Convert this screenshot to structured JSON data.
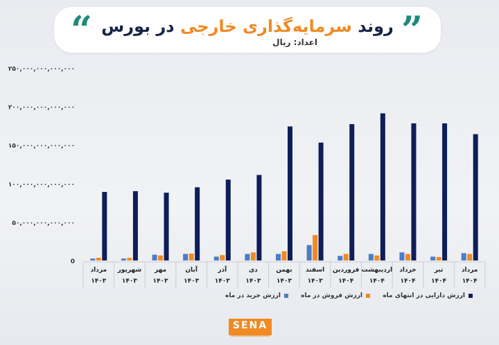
{
  "colors": {
    "buy": "#4d7cc8",
    "sell": "#f08a24",
    "assets": "#0f1e5a",
    "accent": "#f08a24",
    "teal": "#1f8a7a"
  },
  "header": {
    "title_part1": "روند ",
    "title_accent": "سرمایه‌گذاری خارجی",
    "title_part2": " در بورس",
    "unit_label": "اعداد: ریال",
    "quote_left": "“",
    "quote_right": "”"
  },
  "logo": {
    "text": "SENA"
  },
  "chart_data": {
    "type": "bar",
    "ylim": [
      0,
      250000000000000
    ],
    "y_ticks": [
      0,
      50000000000000,
      100000000000000,
      150000000000000,
      200000000000000,
      250000000000000
    ],
    "y_tick_labels": [
      "0",
      "۵۰,۰۰۰,۰۰۰,۰۰۰,۰۰۰",
      "۱۰۰,۰۰۰,۰۰۰,۰۰۰,۰۰۰",
      "۱۵۰,۰۰۰,۰۰۰,۰۰۰,۰۰۰",
      "۲۰۰,۰۰۰,۰۰۰,۰۰۰,۰۰۰",
      "۲۵۰,۰۰۰,۰۰۰,۰۰۰,۰۰۰"
    ],
    "categories": [
      {
        "month": "مرداد",
        "year": "۱۴۰۳"
      },
      {
        "month": "شهریور",
        "year": "۱۴۰۳"
      },
      {
        "month": "مهر",
        "year": "۱۴۰۳"
      },
      {
        "month": "آبان",
        "year": "۱۴۰۳"
      },
      {
        "month": "آذر",
        "year": "۱۴۰۳"
      },
      {
        "month": "دی",
        "year": "۱۴۰۳"
      },
      {
        "month": "بهمن",
        "year": "۱۴۰۳"
      },
      {
        "month": "اسفند",
        "year": "۱۴۰۳"
      },
      {
        "month": "فروردین",
        "year": "۱۴۰۴"
      },
      {
        "month": "اردیبهشت",
        "year": "۱۴۰۴"
      },
      {
        "month": "خرداد",
        "year": "۱۴۰۴"
      },
      {
        "month": "تیر",
        "year": "۱۴۰۴"
      },
      {
        "month": "مرداد",
        "year": "۱۴۰۴"
      }
    ],
    "series": [
      {
        "name": "ارزش خرید در ماه",
        "color_key": "buy",
        "values": [
          2500000000000,
          2500000000000,
          7500000000000,
          8500000000000,
          5000000000000,
          8500000000000,
          8500000000000,
          20000000000000,
          6000000000000,
          8500000000000,
          10500000000000,
          5000000000000,
          9500000000000
        ]
      },
      {
        "name": "ارزش فروش در ماه",
        "color_key": "sell",
        "values": [
          3500000000000,
          3500000000000,
          6500000000000,
          9000000000000,
          7000000000000,
          10500000000000,
          12000000000000,
          33000000000000,
          8500000000000,
          6500000000000,
          8500000000000,
          4500000000000,
          8500000000000
        ]
      },
      {
        "name": "ارزش دارایی در انتهای ماه",
        "color_key": "assets",
        "values": [
          89000000000000,
          90000000000000,
          88000000000000,
          95000000000000,
          105000000000000,
          111000000000000,
          174000000000000,
          153000000000000,
          177000000000000,
          191000000000000,
          178000000000000,
          178000000000000,
          164000000000000
        ]
      }
    ]
  }
}
